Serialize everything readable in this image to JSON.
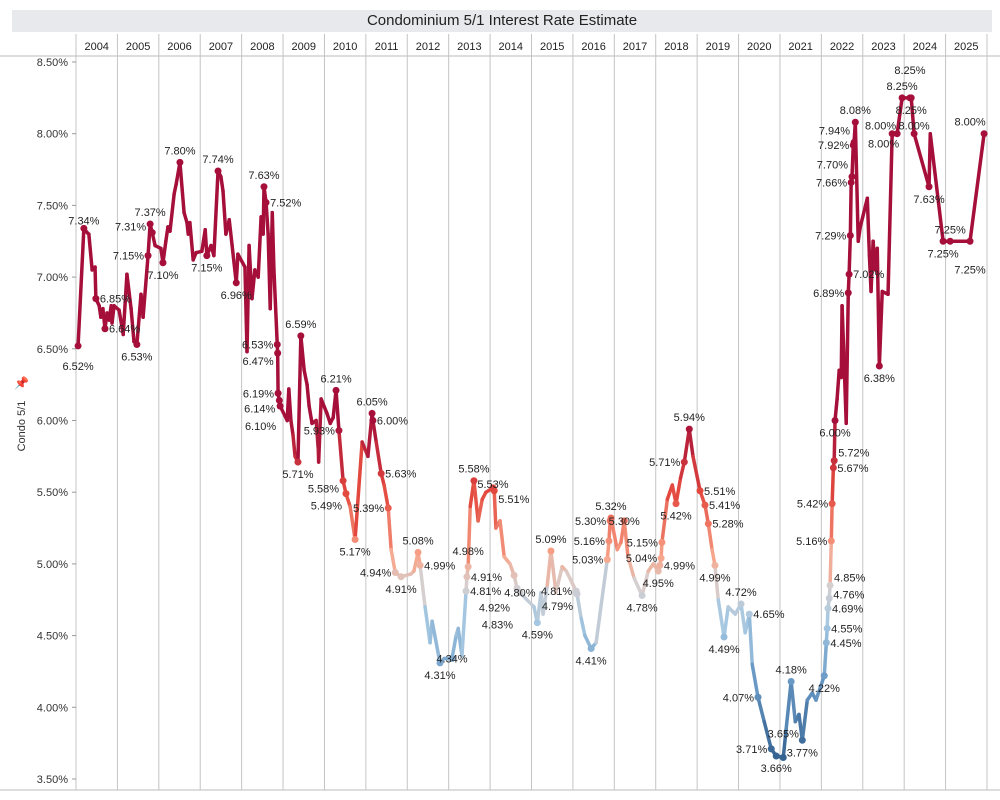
{
  "chart_data": {
    "type": "line",
    "title": "Condominium 5/1 Interest Rate Estimate",
    "ylabel": "Condo 5/1",
    "xlabel": "",
    "ylim": [
      3.5,
      8.5
    ],
    "y_ticks": [
      "8.50%",
      "8.00%",
      "7.50%",
      "7.00%",
      "6.50%",
      "6.00%",
      "5.50%",
      "5.00%",
      "4.50%",
      "4.00%",
      "3.50%"
    ],
    "y_tick_values": [
      8.5,
      8.0,
      7.5,
      7.0,
      6.5,
      6.0,
      5.5,
      5.0,
      4.5,
      4.0,
      3.5
    ],
    "x_columns": [
      "2004",
      "2005",
      "2006",
      "2007",
      "2008",
      "2009",
      "2010",
      "2011",
      "2012",
      "2013",
      "2014",
      "2015",
      "2016",
      "2017",
      "2018",
      "2019",
      "2020",
      "2021",
      "2022",
      "2023",
      "2024",
      "2025"
    ],
    "grid": "vertical year separators",
    "color_scale": {
      "type": "diverging",
      "low": "#2f5d8c",
      "mid": "#d6cfcf",
      "high": "#a50f3a"
    },
    "points": [
      [
        2004.05,
        6.52,
        "b"
      ],
      [
        2004.19,
        7.34,
        "t"
      ],
      [
        2004.27,
        7.31,
        null
      ],
      [
        2004.31,
        7.3,
        null
      ],
      [
        2004.39,
        7.05,
        null
      ],
      [
        2004.46,
        7.07,
        null
      ],
      [
        2004.48,
        6.85,
        "r"
      ],
      [
        2004.56,
        6.8,
        null
      ],
      [
        2004.6,
        6.72,
        null
      ],
      [
        2004.65,
        6.78,
        null
      ],
      [
        2004.7,
        6.64,
        "r"
      ],
      [
        2004.75,
        6.75,
        null
      ],
      [
        2004.8,
        6.7,
        null
      ],
      [
        2004.85,
        6.8,
        null
      ],
      [
        2004.87,
        6.68,
        null
      ],
      [
        2004.92,
        6.8,
        null
      ],
      [
        2005.04,
        6.77,
        null
      ],
      [
        2005.14,
        6.6,
        null
      ],
      [
        2005.23,
        7.02,
        null
      ],
      [
        2005.33,
        6.78,
        null
      ],
      [
        2005.4,
        6.55,
        null
      ],
      [
        2005.47,
        6.53,
        "b"
      ],
      [
        2005.57,
        6.88,
        null
      ],
      [
        2005.62,
        6.72,
        null
      ],
      [
        2005.74,
        7.15,
        "l"
      ],
      [
        2005.79,
        7.37,
        "t"
      ],
      [
        2005.84,
        7.31,
        "l2"
      ],
      [
        2005.91,
        7.22,
        null
      ],
      [
        2006.05,
        7.2,
        null
      ],
      [
        2006.1,
        7.1,
        "b"
      ],
      [
        2006.17,
        7.25,
        null
      ],
      [
        2006.22,
        7.35,
        null
      ],
      [
        2006.27,
        7.32,
        null
      ],
      [
        2006.37,
        7.58,
        null
      ],
      [
        2006.42,
        7.65,
        null
      ],
      [
        2006.51,
        7.8,
        "t"
      ],
      [
        2006.61,
        7.45,
        null
      ],
      [
        2006.68,
        7.38,
        null
      ],
      [
        2006.71,
        7.3,
        null
      ],
      [
        2006.75,
        7.38,
        null
      ],
      [
        2006.83,
        7.12,
        null
      ],
      [
        2006.9,
        7.17,
        null
      ],
      [
        2007.04,
        7.18,
        null
      ],
      [
        2007.12,
        7.33,
        null
      ],
      [
        2007.16,
        7.15,
        "b"
      ],
      [
        2007.26,
        7.22,
        null
      ],
      [
        2007.33,
        7.15,
        null
      ],
      [
        2007.43,
        7.74,
        "t"
      ],
      [
        2007.5,
        7.7,
        null
      ],
      [
        2007.55,
        7.6,
        null
      ],
      [
        2007.62,
        7.3,
        null
      ],
      [
        2007.7,
        7.4,
        null
      ],
      [
        2007.77,
        7.22,
        null
      ],
      [
        2007.87,
        6.96,
        "b"
      ],
      [
        2007.91,
        7.16,
        null
      ],
      [
        2008.08,
        7.07,
        null
      ],
      [
        2008.13,
        6.48,
        null
      ],
      [
        2008.18,
        7.22,
        null
      ],
      [
        2008.25,
        6.85,
        null
      ],
      [
        2008.32,
        7.05,
        null
      ],
      [
        2008.4,
        7.0,
        null
      ],
      [
        2008.47,
        7.42,
        null
      ],
      [
        2008.52,
        7.3,
        null
      ],
      [
        2008.54,
        7.63,
        "t"
      ],
      [
        2008.59,
        7.52,
        "r"
      ],
      [
        2008.64,
        7.3,
        null
      ],
      [
        2008.69,
        6.78,
        null
      ],
      [
        2008.74,
        7.45,
        null
      ],
      [
        2008.78,
        7.05,
        null
      ],
      [
        2008.86,
        6.53,
        "l"
      ],
      [
        2008.87,
        6.47,
        "l"
      ],
      [
        2008.88,
        6.19,
        "l"
      ],
      [
        2008.91,
        6.14,
        "l"
      ],
      [
        2008.93,
        6.1,
        "l"
      ],
      [
        2009.1,
        6.0,
        null
      ],
      [
        2009.14,
        6.22,
        null
      ],
      [
        2009.19,
        6.0,
        null
      ],
      [
        2009.24,
        5.9,
        null
      ],
      [
        2009.29,
        5.75,
        null
      ],
      [
        2009.36,
        5.71,
        "b"
      ],
      [
        2009.43,
        6.59,
        "t"
      ],
      [
        2009.51,
        6.35,
        null
      ],
      [
        2009.58,
        6.25,
        null
      ],
      [
        2009.63,
        6.1,
        null
      ],
      [
        2009.7,
        5.98,
        null
      ],
      [
        2009.8,
        6.0,
        null
      ],
      [
        2009.85,
        5.8,
        null
      ],
      [
        2009.86,
        5.71,
        null
      ],
      [
        2009.92,
        6.15,
        null
      ],
      [
        2010.06,
        6.05,
        null
      ],
      [
        2010.14,
        5.98,
        null
      ],
      [
        2010.21,
        6.02,
        null
      ],
      [
        2010.28,
        6.21,
        "t"
      ],
      [
        2010.35,
        5.93,
        "l"
      ],
      [
        2010.45,
        5.58,
        "l"
      ],
      [
        2010.52,
        5.49,
        "l"
      ],
      [
        2010.62,
        5.4,
        null
      ],
      [
        2010.74,
        5.17,
        "b"
      ],
      [
        2010.91,
        5.85,
        null
      ],
      [
        2011.05,
        5.75,
        null
      ],
      [
        2011.15,
        6.05,
        "t"
      ],
      [
        2011.17,
        6.0,
        "r"
      ],
      [
        2011.25,
        5.85,
        null
      ],
      [
        2011.37,
        5.63,
        "r"
      ],
      [
        2011.44,
        5.55,
        null
      ],
      [
        2011.54,
        5.39,
        "l"
      ],
      [
        2011.61,
        5.1,
        null
      ],
      [
        2011.71,
        4.94,
        "l"
      ],
      [
        2011.85,
        4.91,
        "b"
      ],
      [
        2012.09,
        4.93,
        null
      ],
      [
        2012.16,
        4.95,
        null
      ],
      [
        2012.26,
        5.08,
        "t"
      ],
      [
        2012.31,
        4.99,
        "r"
      ],
      [
        2012.43,
        4.7,
        null
      ],
      [
        2012.55,
        4.45,
        null
      ],
      [
        2012.6,
        4.6,
        null
      ],
      [
        2012.79,
        4.31,
        "b"
      ],
      [
        2012.89,
        4.34,
        null
      ],
      [
        2013.08,
        4.34,
        "b"
      ],
      [
        2013.18,
        4.5,
        null
      ],
      [
        2013.23,
        4.55,
        null
      ],
      [
        2013.32,
        4.36,
        null
      ],
      [
        2013.42,
        4.81,
        "r"
      ],
      [
        2013.44,
        4.91,
        "r"
      ],
      [
        2013.47,
        4.98,
        "t"
      ],
      [
        2013.52,
        5.4,
        null
      ],
      [
        2013.61,
        5.58,
        "t"
      ],
      [
        2013.71,
        5.3,
        null
      ],
      [
        2013.81,
        5.45,
        null
      ],
      [
        2013.9,
        5.5,
        null
      ],
      [
        2014.07,
        5.53,
        "t"
      ],
      [
        2014.1,
        5.51,
        "r"
      ],
      [
        2014.14,
        5.25,
        null
      ],
      [
        2014.24,
        5.3,
        null
      ],
      [
        2014.34,
        5.05,
        null
      ],
      [
        2014.48,
        5.0,
        null
      ],
      [
        2014.58,
        4.92,
        "l"
      ],
      [
        2014.65,
        4.83,
        "l"
      ],
      [
        2014.72,
        4.8,
        "b"
      ],
      [
        2015.06,
        4.7,
        null
      ],
      [
        2015.14,
        4.59,
        "b"
      ],
      [
        2015.23,
        4.8,
        null
      ],
      [
        2015.28,
        4.65,
        null
      ],
      [
        2015.38,
        4.85,
        null
      ],
      [
        2015.47,
        5.09,
        "t"
      ],
      [
        2015.59,
        4.8,
        null
      ],
      [
        2015.74,
        4.98,
        null
      ],
      [
        2015.84,
        4.95,
        null
      ],
      [
        2016.08,
        4.81,
        "l"
      ],
      [
        2016.1,
        4.79,
        "l"
      ],
      [
        2016.2,
        4.62,
        null
      ],
      [
        2016.29,
        4.5,
        null
      ],
      [
        2016.44,
        4.41,
        "b"
      ],
      [
        2016.56,
        4.45,
        null
      ],
      [
        2016.83,
        5.03,
        "l"
      ],
      [
        2016.87,
        5.16,
        "l"
      ],
      [
        2016.9,
        5.3,
        "l"
      ],
      [
        2016.92,
        5.32,
        "t"
      ],
      [
        2017.07,
        5.1,
        null
      ],
      [
        2017.16,
        5.15,
        null
      ],
      [
        2017.24,
        5.3,
        "t"
      ],
      [
        2017.33,
        5.05,
        null
      ],
      [
        2017.48,
        4.9,
        null
      ],
      [
        2017.67,
        4.78,
        "b"
      ],
      [
        2017.82,
        4.95,
        null
      ],
      [
        2017.94,
        5.0,
        null
      ],
      [
        2018.06,
        4.95,
        "b"
      ],
      [
        2018.1,
        4.99,
        "r"
      ],
      [
        2018.13,
        5.04,
        "l"
      ],
      [
        2018.15,
        5.15,
        "l"
      ],
      [
        2018.28,
        5.45,
        null
      ],
      [
        2018.4,
        5.55,
        null
      ],
      [
        2018.49,
        5.42,
        "b"
      ],
      [
        2018.6,
        5.6,
        null
      ],
      [
        2018.69,
        5.71,
        "l"
      ],
      [
        2018.81,
        5.94,
        "t"
      ],
      [
        2018.9,
        5.75,
        null
      ],
      [
        2019.07,
        5.51,
        "r"
      ],
      [
        2019.19,
        5.41,
        "r"
      ],
      [
        2019.27,
        5.28,
        "r"
      ],
      [
        2019.36,
        5.1,
        null
      ],
      [
        2019.43,
        4.99,
        "b"
      ],
      [
        2019.51,
        4.75,
        null
      ],
      [
        2019.65,
        4.49,
        "b"
      ],
      [
        2019.75,
        4.7,
        null
      ],
      [
        2019.92,
        4.65,
        null
      ],
      [
        2020.06,
        4.72,
        "t"
      ],
      [
        2020.16,
        4.52,
        null
      ],
      [
        2020.26,
        4.65,
        "r"
      ],
      [
        2020.33,
        4.3,
        null
      ],
      [
        2020.47,
        4.07,
        "l"
      ],
      [
        2020.62,
        3.9,
        null
      ],
      [
        2020.79,
        3.71,
        "l"
      ],
      [
        2020.91,
        3.66,
        "b"
      ],
      [
        2021.08,
        3.65,
        "b"
      ],
      [
        2021.15,
        3.85,
        null
      ],
      [
        2021.27,
        4.18,
        "t"
      ],
      [
        2021.37,
        3.9,
        null
      ],
      [
        2021.46,
        3.95,
        null
      ],
      [
        2021.54,
        3.77,
        "b"
      ],
      [
        2021.66,
        4.05,
        null
      ],
      [
        2021.78,
        4.1,
        null
      ],
      [
        2021.87,
        4.05,
        null
      ],
      [
        2022.07,
        4.22,
        "b"
      ],
      [
        2022.12,
        4.45,
        "r"
      ],
      [
        2022.14,
        4.55,
        "r"
      ],
      [
        2022.16,
        4.69,
        "r"
      ],
      [
        2022.19,
        4.76,
        "r"
      ],
      [
        2022.21,
        4.85,
        "r"
      ],
      [
        2022.24,
        5.16,
        "l"
      ],
      [
        2022.26,
        5.42,
        "l"
      ],
      [
        2022.29,
        5.67,
        "r"
      ],
      [
        2022.31,
        5.72,
        "r"
      ],
      [
        2022.33,
        6.0,
        "b"
      ],
      [
        2022.38,
        6.15,
        null
      ],
      [
        2022.43,
        6.35,
        null
      ],
      [
        2022.48,
        6.3,
        null
      ],
      [
        2022.5,
        6.8,
        null
      ],
      [
        2022.55,
        6.4,
        null
      ],
      [
        2022.6,
        5.98,
        null
      ],
      [
        2022.65,
        6.89,
        "l"
      ],
      [
        2022.67,
        7.02,
        "r"
      ],
      [
        2022.7,
        7.29,
        "l"
      ],
      [
        2022.72,
        7.66,
        "l"
      ],
      [
        2022.74,
        7.7,
        "l"
      ],
      [
        2022.77,
        7.92,
        "l"
      ],
      [
        2022.79,
        7.94,
        "l"
      ],
      [
        2022.82,
        8.08,
        "t"
      ],
      [
        2022.89,
        7.25,
        null
      ],
      [
        2022.94,
        7.35,
        null
      ],
      [
        2023.11,
        7.55,
        null
      ],
      [
        2023.16,
        7.15,
        null
      ],
      [
        2023.2,
        6.9,
        null
      ],
      [
        2023.25,
        7.25,
        null
      ],
      [
        2023.3,
        7.05,
        null
      ],
      [
        2023.35,
        7.2,
        null
      ],
      [
        2023.4,
        6.38,
        "b"
      ],
      [
        2023.47,
        6.9,
        null
      ],
      [
        2023.61,
        6.88,
        null
      ],
      [
        2023.71,
        8.0,
        "tl"
      ],
      [
        2023.83,
        8.0,
        "bl"
      ],
      [
        2023.95,
        8.25,
        "t"
      ],
      [
        2024.14,
        8.25,
        "t"
      ],
      [
        2024.17,
        8.25,
        "b"
      ],
      [
        2024.24,
        8.0,
        "t"
      ],
      [
        2024.6,
        7.63,
        "b"
      ],
      [
        2024.63,
        8.0,
        null
      ],
      [
        2024.94,
        7.25,
        "b"
      ],
      [
        2025.11,
        7.25,
        "t"
      ],
      [
        2025.59,
        7.25,
        "b"
      ],
      [
        2025.93,
        8.0,
        "t"
      ]
    ]
  }
}
